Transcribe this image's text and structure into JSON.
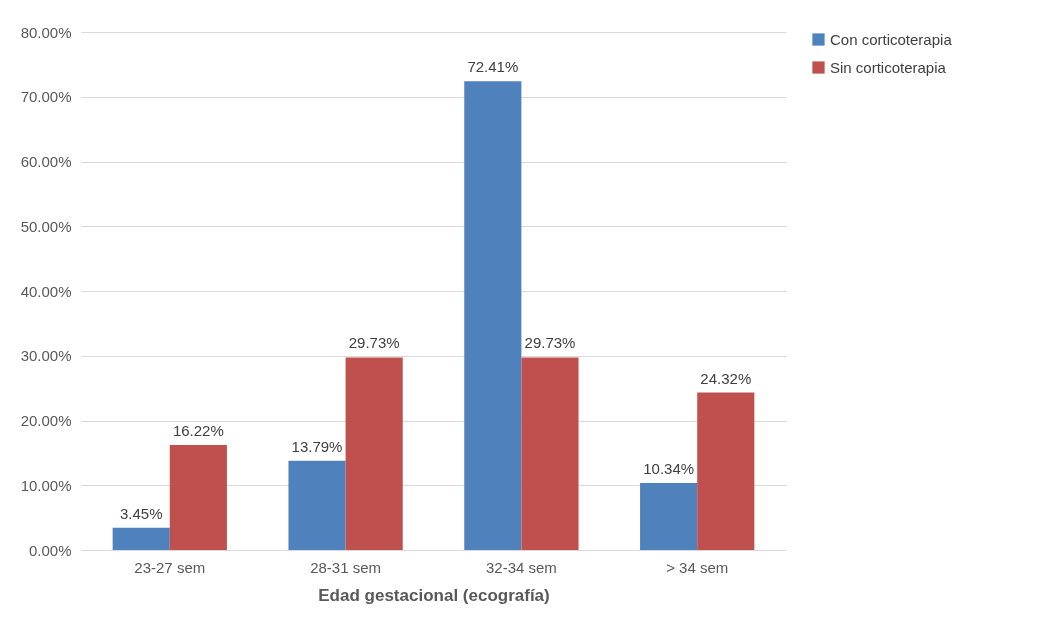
{
  "chart_data": {
    "type": "bar",
    "xlabel": "Edad gestacional (ecografía)",
    "categories": [
      "23-27 sem",
      "28-31 sem",
      "32-34 sem",
      "> 34 sem"
    ],
    "series": [
      {
        "name": "Con corticoterapia",
        "color": "#4f81bd",
        "values": [
          3.45,
          13.79,
          72.41,
          10.34
        ],
        "value_labels": [
          "3.45%",
          "13.79%",
          "72.41%",
          "10.34%"
        ]
      },
      {
        "name": "Sin corticoterapia",
        "color": "#c0504d",
        "values": [
          16.22,
          29.73,
          29.73,
          24.32
        ],
        "value_labels": [
          "16.22%",
          "29.73%",
          "29.73%",
          "24.32%"
        ]
      }
    ],
    "ylim": [
      0,
      80
    ],
    "yticks": [
      {
        "value": 0,
        "label": "0.00%"
      },
      {
        "value": 10,
        "label": "10.00%"
      },
      {
        "value": 20,
        "label": "20.00%"
      },
      {
        "value": 30,
        "label": "30.00%"
      },
      {
        "value": 40,
        "label": "40.00%"
      },
      {
        "value": 50,
        "label": "50.00%"
      },
      {
        "value": 60,
        "label": "60.00%"
      },
      {
        "value": 70,
        "label": "70.00%"
      },
      {
        "value": 80,
        "label": "80.00%"
      }
    ],
    "grid": "y",
    "legend": "right"
  }
}
